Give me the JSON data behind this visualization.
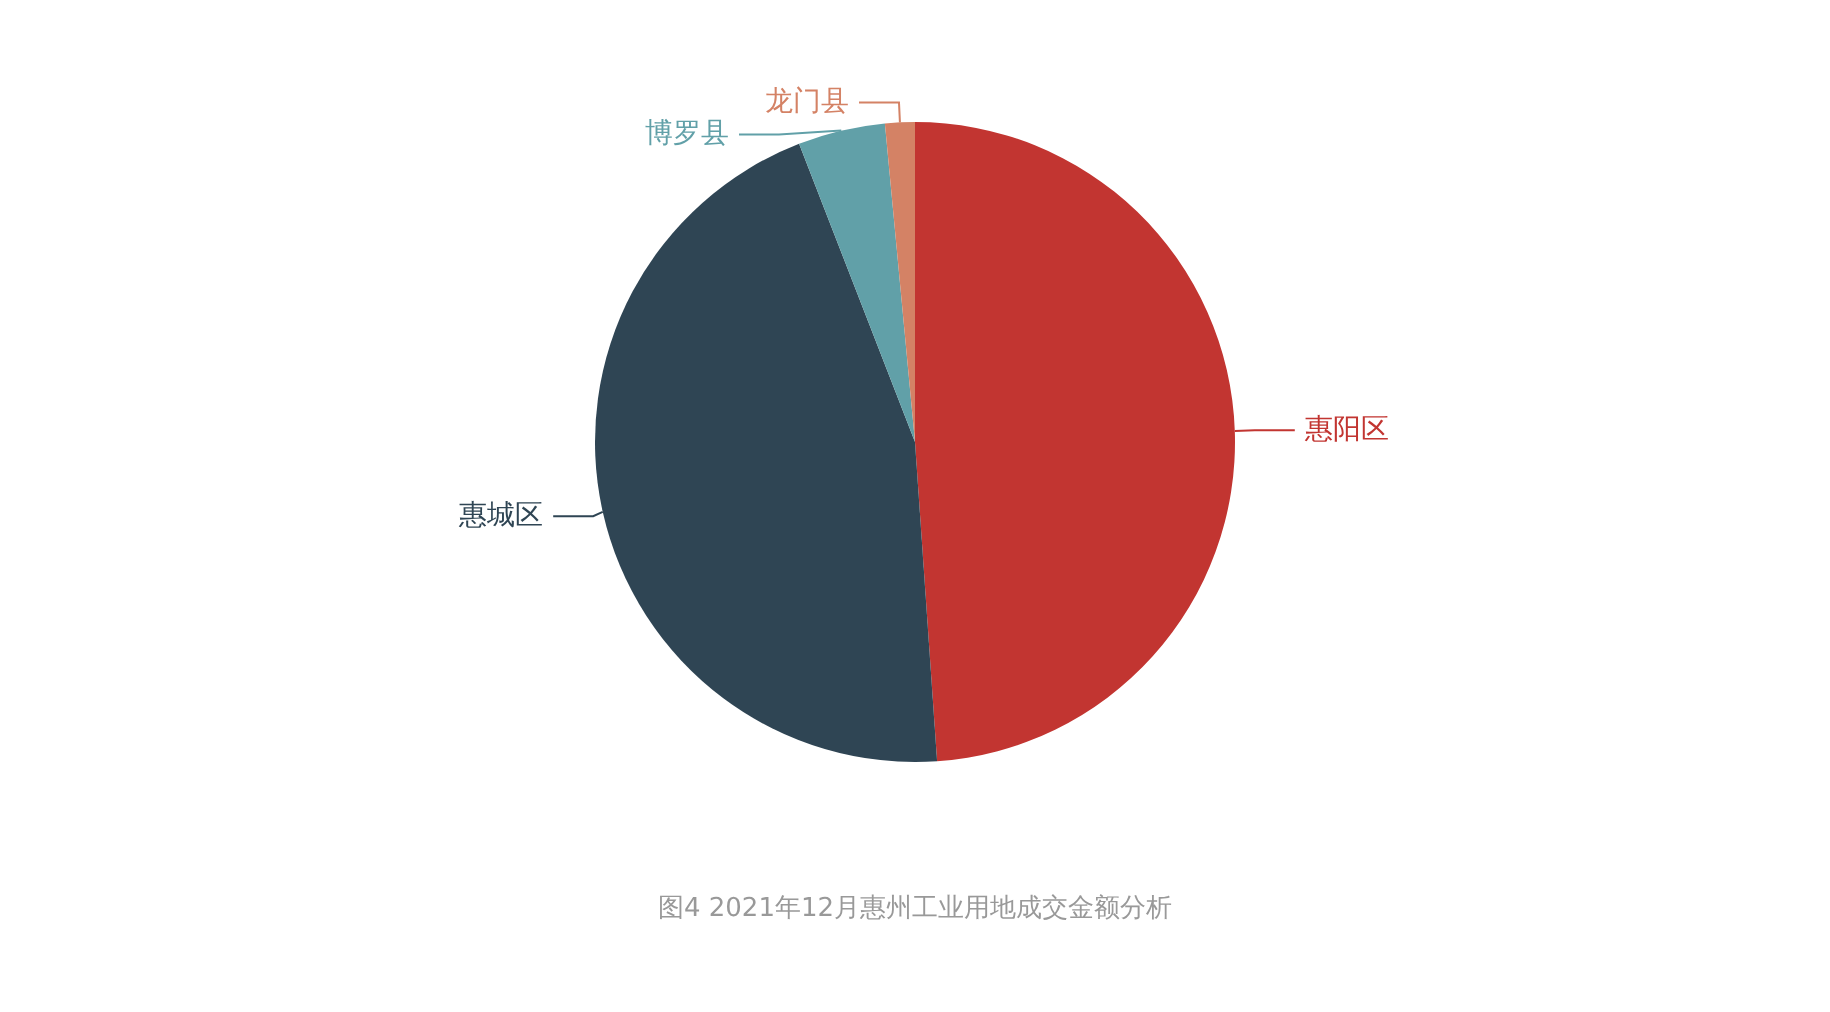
{
  "chart_data": {
    "type": "pie",
    "title": "图4 2021年12月惠州工业用地成交金额分析",
    "categories": [
      "惠阳区",
      "惠城区",
      "博罗县",
      "龙门县"
    ],
    "values": [
      48.9,
      45.2,
      4.4,
      1.5
    ],
    "colors": [
      "#c23531",
      "#2f4554",
      "#61a0a8",
      "#d48265"
    ]
  }
}
